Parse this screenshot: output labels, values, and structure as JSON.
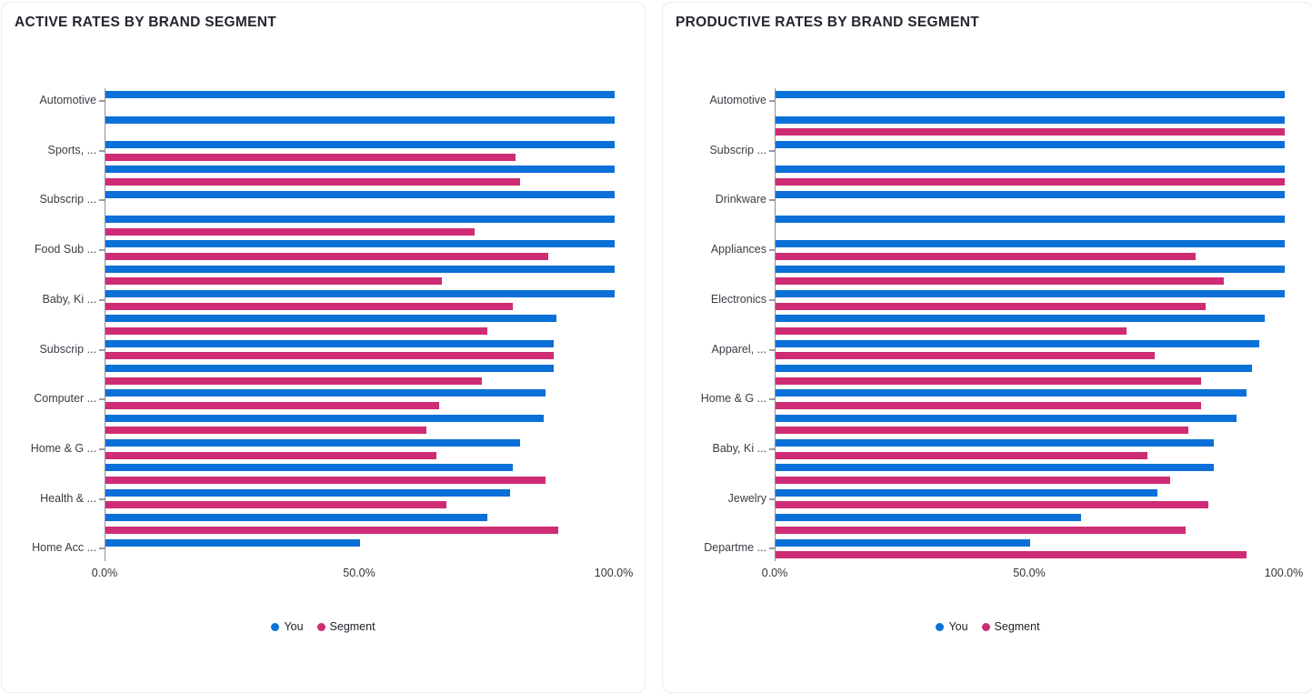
{
  "chart_data": [
    {
      "type": "bar",
      "orientation": "horizontal",
      "title": "ACTIVE RATES BY BRAND SEGMENT",
      "x_tick_labels": [
        "0.0%",
        "50.0%",
        "100.0%"
      ],
      "xlim": [
        0,
        100
      ],
      "grid": false,
      "legend_position": "bottom",
      "categories": [
        "Automotive",
        "",
        "Sports, ...",
        "",
        "Subscrip ...",
        "",
        "Food Sub ...",
        "",
        "Baby, Ki ...",
        "",
        "Subscrip ...",
        "",
        "Computer ...",
        "",
        "Home & G ...",
        "",
        "Health & ...",
        "",
        "Home Acc ..."
      ],
      "series": [
        {
          "name": "You",
          "color": "#0b70d8",
          "values": [
            100,
            100,
            100,
            100,
            100,
            100,
            100,
            100,
            100,
            88.5,
            88,
            88,
            86.5,
            86,
            81.5,
            80,
            79.5,
            75,
            50
          ]
        },
        {
          "name": "Segment",
          "color": "#ce2c74",
          "values": [
            null,
            null,
            80.5,
            81.5,
            null,
            72.5,
            87,
            66,
            80,
            75,
            88,
            74,
            65.5,
            63,
            65,
            86.5,
            67,
            89,
            null
          ]
        }
      ]
    },
    {
      "type": "bar",
      "orientation": "horizontal",
      "title": "PRODUCTIVE RATES BY BRAND SEGMENT",
      "x_tick_labels": [
        "0.0%",
        "50.0%",
        "100.0%"
      ],
      "xlim": [
        0,
        100
      ],
      "grid": false,
      "legend_position": "bottom",
      "categories": [
        "Automotive",
        "",
        "Subscrip ...",
        "",
        "Drinkware",
        "",
        "Appliances",
        "",
        "Electronics",
        "",
        "Apparel, ...",
        "",
        "Home & G ...",
        "",
        "Baby, Ki ...",
        "",
        "Jewelry",
        "",
        "Departme ..."
      ],
      "series": [
        {
          "name": "You",
          "color": "#0b70d8",
          "values": [
            100,
            100,
            100,
            100,
            100,
            100,
            100,
            100,
            100,
            96,
            95,
            93.5,
            92.5,
            90.5,
            86,
            86,
            75,
            60,
            50
          ]
        },
        {
          "name": "Segment",
          "color": "#ce2c74",
          "values": [
            null,
            100,
            null,
            100,
            null,
            null,
            82.5,
            88,
            84.5,
            69,
            74.5,
            83.5,
            83.5,
            81,
            73,
            77.5,
            85,
            80.5,
            92.5
          ]
        }
      ]
    }
  ]
}
